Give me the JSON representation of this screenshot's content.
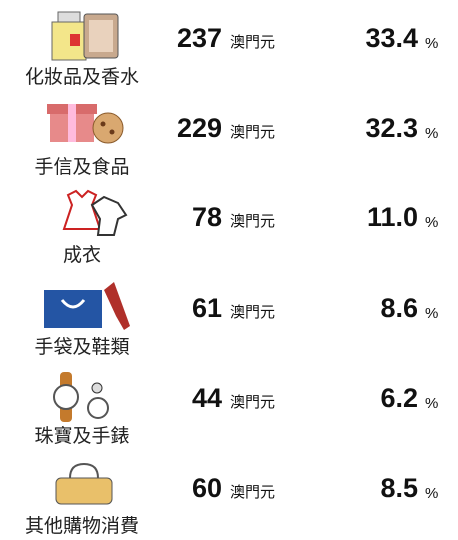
{
  "unit": "澳門元",
  "percent_unit": "%",
  "rows": [
    {
      "label": "化妝品及香水",
      "amount": "237",
      "percent": "33.4"
    },
    {
      "label": "手信及食品",
      "amount": "229",
      "percent": "32.3"
    },
    {
      "label": "成衣",
      "amount": "78",
      "percent": "11.0"
    },
    {
      "label": "手袋及鞋類",
      "amount": "61",
      "percent": "8.6"
    },
    {
      "label": "珠寶及手錶",
      "amount": "44",
      "percent": "6.2"
    },
    {
      "label": "其他購物消費",
      "amount": "60",
      "percent": "8.5"
    }
  ]
}
